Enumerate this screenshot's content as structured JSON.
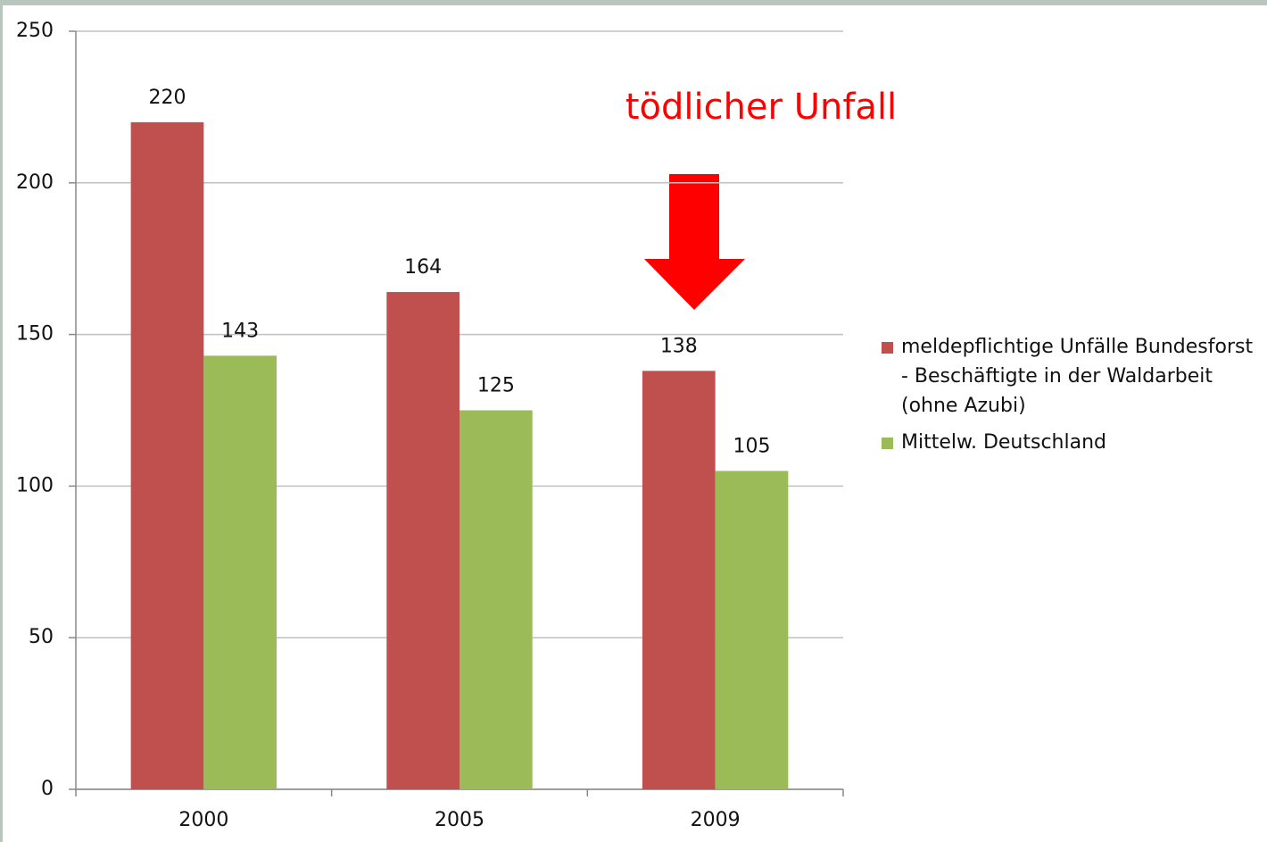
{
  "chart_data": {
    "type": "bar",
    "annotation": "tödlicher Unfall",
    "categories": [
      "2000",
      "2005",
      "2009"
    ],
    "series": [
      {
        "name": "meldepflichtige Unfälle Bundesforst - Beschäftigte in der Waldarbeit (ohne Azubi)",
        "color": "#c0504d",
        "values": [
          220,
          164,
          138
        ]
      },
      {
        "name": "Mittelw. Deutschland",
        "color": "#9bbb59",
        "values": [
          143,
          125,
          105
        ]
      }
    ],
    "ylim": [
      0,
      250
    ],
    "yticks": [
      0,
      50,
      100,
      150,
      200,
      250
    ],
    "grid": true,
    "legend": "right"
  }
}
